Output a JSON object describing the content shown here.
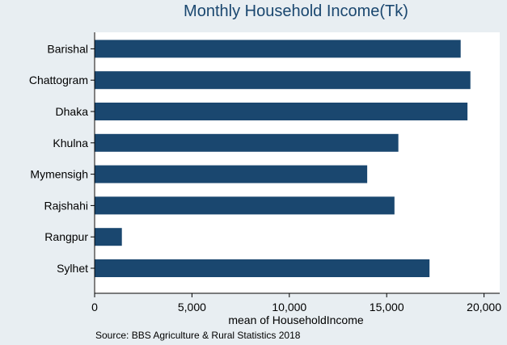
{
  "chart_data": {
    "type": "bar",
    "orientation": "horizontal",
    "title": "Monthly Household Income(Tk)",
    "xlabel": "mean of HouseholdIncome",
    "ylabel": "",
    "note": "Source: BBS Agriculture & Rural Statistics 2018",
    "categories": [
      "Barishal",
      "Chattogram",
      "Dhaka",
      "Khulna",
      "Mymensigh",
      "Rajshahi",
      "Rangpur",
      "Sylhet"
    ],
    "values": [
      18800,
      19300,
      19150,
      15600,
      14000,
      15400,
      1400,
      17200
    ],
    "xlim": [
      0,
      20000
    ],
    "xticks": [
      0,
      5000,
      10000,
      15000,
      20000
    ],
    "xtick_labels": [
      "0",
      "5,000",
      "10,000",
      "15,000",
      "20,000"
    ],
    "grid": false,
    "legend": "none",
    "colors": {
      "bar": "#1a476f",
      "background": "#e8eef2",
      "plot_background": "#ffffff",
      "title": "#1a476f",
      "text": "#000000"
    }
  }
}
